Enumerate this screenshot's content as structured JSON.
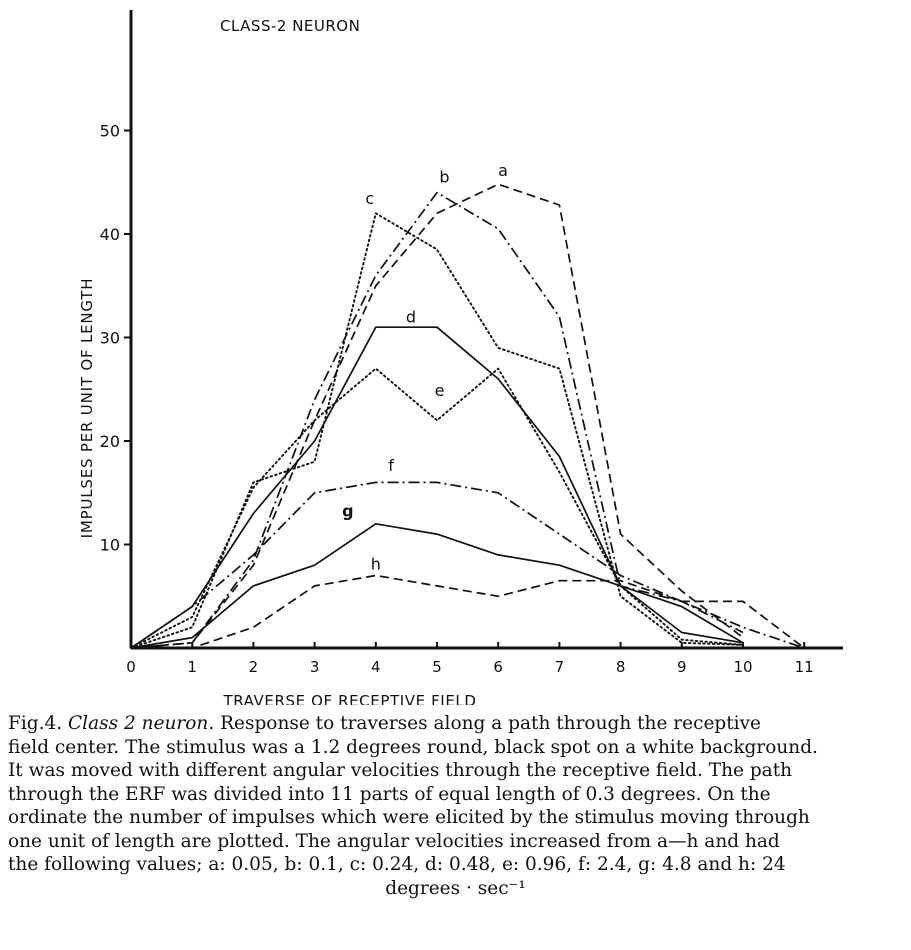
{
  "chart_data": {
    "type": "line",
    "title": "CLASS-2 NEURON",
    "xlabel": "TRAVERSE OF RECEPTIVE FIELD",
    "ylabel": "IMPULSES PER UNIT OF LENGTH",
    "xlim": [
      0,
      11
    ],
    "ylim": [
      0,
      50
    ],
    "xticks": [
      0,
      1,
      2,
      3,
      4,
      5,
      6,
      7,
      8,
      9,
      10,
      11
    ],
    "yticks": [
      10,
      20,
      30,
      40,
      50
    ],
    "grid": false,
    "legend": "none (series letters placed on curves)",
    "series": [
      {
        "name": "a",
        "style": "dashed",
        "x": [
          0,
          1,
          2,
          3,
          4,
          5,
          6,
          7,
          8,
          9,
          10
        ],
        "y": [
          0,
          0.5,
          8,
          22,
          35,
          42,
          44.8,
          42.8,
          11,
          5.5,
          1
        ]
      },
      {
        "name": "b",
        "style": "dashdot",
        "x": [
          0,
          1,
          2,
          3,
          4,
          5,
          6,
          7,
          8,
          9,
          10
        ],
        "y": [
          0,
          0.5,
          8.5,
          24,
          36,
          44,
          40.5,
          32,
          6,
          4.5,
          1.5
        ]
      },
      {
        "name": "c",
        "style": "dotted",
        "x": [
          0,
          1,
          2,
          3,
          4,
          5,
          6,
          7,
          8,
          9,
          10
        ],
        "y": [
          0,
          2,
          16,
          18,
          42,
          38.5,
          29,
          27,
          5,
          0.5,
          0.3
        ]
      },
      {
        "name": "d",
        "style": "solid",
        "x": [
          0,
          1,
          2,
          3,
          4,
          5,
          6,
          7,
          8,
          9,
          10
        ],
        "y": [
          0,
          4,
          13,
          20,
          31,
          31,
          26,
          18.5,
          6,
          1.5,
          0.5
        ]
      },
      {
        "name": "e",
        "style": "dotted",
        "x": [
          0,
          1,
          2,
          3,
          4,
          5,
          6,
          7,
          8,
          9,
          10
        ],
        "y": [
          0,
          3,
          15.5,
          22,
          27,
          22,
          27,
          17,
          6,
          0.8,
          0.3
        ]
      },
      {
        "name": "f",
        "style": "dashdot",
        "x": [
          0,
          1,
          2,
          3,
          4,
          5,
          6,
          7,
          8,
          9,
          10,
          11
        ],
        "y": [
          0,
          4,
          9,
          15,
          16,
          16,
          15,
          11,
          7,
          4.5,
          2,
          0
        ]
      },
      {
        "name": "g",
        "style": "solid",
        "x": [
          0,
          1,
          2,
          3,
          4,
          5,
          6,
          7,
          8,
          9,
          10
        ],
        "y": [
          0,
          1,
          6,
          8,
          12,
          11,
          9,
          8,
          6,
          4,
          0.5
        ]
      },
      {
        "name": "h",
        "style": "dashed",
        "x": [
          0,
          1,
          2,
          3,
          4,
          5,
          6,
          7,
          8,
          9,
          10,
          11
        ],
        "y": [
          0,
          0,
          2,
          6,
          7,
          6,
          5,
          6.5,
          6.5,
          4.5,
          4.5,
          0
        ]
      }
    ]
  },
  "caption": {
    "label": "Fig.4.",
    "title": "Class 2 neuron",
    "lines": [
      "Response to traverses along a path through the receptive",
      "field center. The stimulus was a 1.2 degrees round, black spot on a white background.",
      "It was moved with different angular velocities through the receptive field. The path",
      "through the ERF was divided into 11 parts of equal length of 0.3 degrees. On the",
      "ordinate the number of impulses which were elicited by the stimulus moving through",
      "one unit of length are plotted. The angular velocities increased from a—h and had",
      "the following values; a: 0.05, b: 0.1, c: 0.24, d: 0.48, e: 0.96, f: 2.4, g: 4.8 and h: 24",
      "degrees · sec⁻¹"
    ]
  }
}
